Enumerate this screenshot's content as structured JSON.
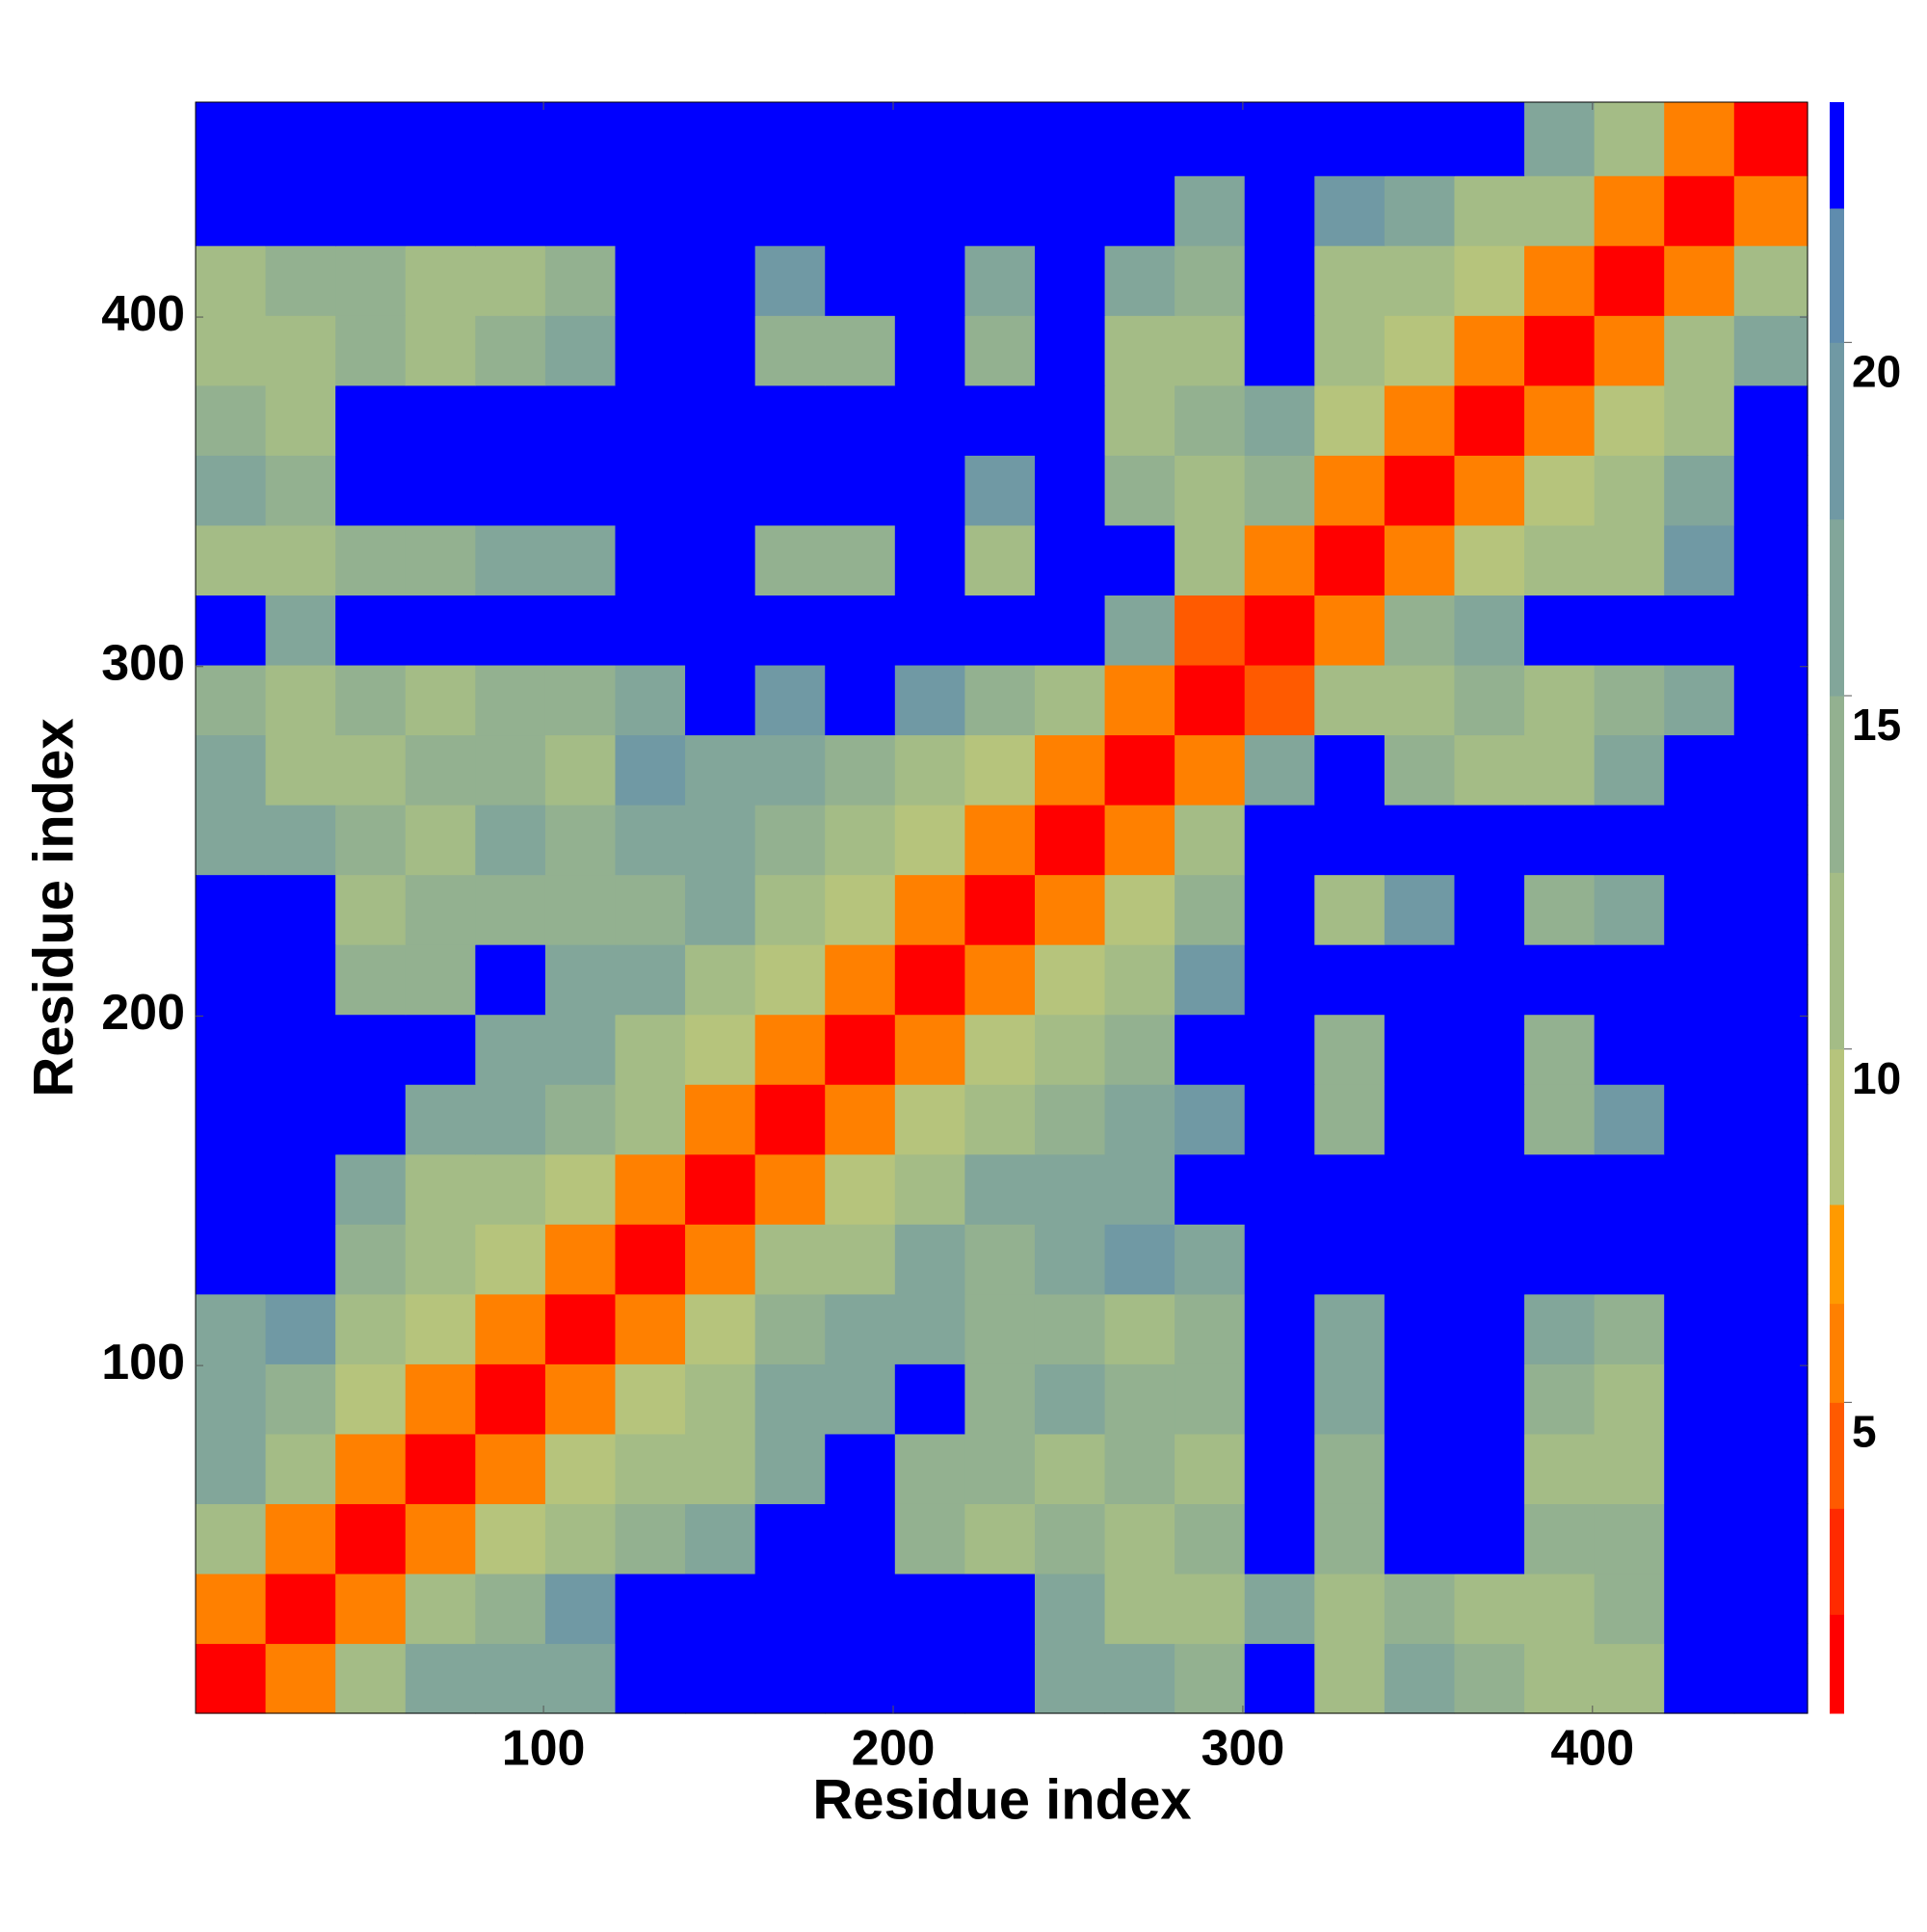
{
  "chart_data": {
    "type": "heatmap",
    "x_label": "Residue index",
    "y_label": "Residue index",
    "xlim": [
      0.5,
      461.5
    ],
    "ylim": [
      0.5,
      461.5
    ],
    "xticks": [
      100,
      200,
      300,
      400
    ],
    "yticks": [
      100,
      200,
      300,
      400
    ],
    "bin_edges": [
      0.5,
      20.5,
      40.5,
      60.5,
      80.5,
      100.5,
      120.5,
      140.5,
      160.5,
      180.5,
      200.5,
      220.5,
      240.5,
      260.5,
      280.5,
      300.5,
      320.5,
      340.5,
      360.5,
      380.5,
      400.5,
      420.5,
      440.5,
      461.5
    ],
    "values": [
      [
        1,
        6,
        11,
        16,
        16,
        17,
        23,
        23,
        23,
        23,
        23,
        23,
        17,
        15,
        14,
        23,
        12,
        16,
        13,
        11,
        10,
        23,
        23
      ],
      [
        6,
        1,
        5,
        10,
        14,
        18,
        23,
        23,
        23,
        23,
        23,
        23,
        16,
        12,
        12,
        15,
        11,
        14,
        12,
        11,
        13,
        23,
        23
      ],
      [
        11,
        5,
        1,
        5,
        9,
        10,
        13,
        17,
        23,
        23,
        13,
        12,
        14,
        11,
        13,
        23,
        14,
        23,
        23,
        13,
        13,
        23,
        23
      ],
      [
        16,
        10,
        5,
        1,
        5,
        8,
        10,
        12,
        16,
        23,
        13,
        13,
        12,
        13,
        12,
        23,
        13,
        23,
        23,
        10,
        12,
        23,
        23
      ],
      [
        16,
        14,
        9,
        5,
        1,
        5,
        9,
        11,
        15,
        17,
        23,
        14,
        15,
        14,
        13,
        23,
        17,
        23,
        23,
        13,
        11,
        23,
        23
      ],
      [
        17,
        18,
        10,
        8,
        5,
        1,
        5,
        9,
        13,
        15,
        15,
        13,
        13,
        12,
        14,
        23,
        16,
        23,
        23,
        15,
        14,
        23,
        23
      ],
      [
        23,
        23,
        13,
        10,
        9,
        5,
        1,
        5,
        10,
        12,
        17,
        14,
        15,
        18,
        17,
        23,
        23,
        23,
        23,
        23,
        23,
        23,
        23
      ],
      [
        23,
        23,
        17,
        12,
        11,
        9,
        5,
        1,
        5,
        9,
        11,
        17,
        17,
        16,
        23,
        23,
        23,
        23,
        23,
        23,
        23,
        23,
        23
      ],
      [
        23,
        23,
        23,
        16,
        15,
        13,
        10,
        5,
        1,
        5,
        9,
        10,
        13,
        17,
        19,
        23,
        13,
        23,
        23,
        14,
        19,
        23,
        23
      ],
      [
        23,
        23,
        23,
        23,
        17,
        15,
        12,
        9,
        5,
        1,
        5,
        9,
        10,
        13,
        23,
        23,
        13,
        23,
        23,
        14,
        23,
        23,
        23
      ],
      [
        23,
        23,
        13,
        13,
        23,
        15,
        17,
        11,
        9,
        5,
        1,
        5,
        9,
        10,
        19,
        23,
        23,
        23,
        23,
        23,
        23,
        23,
        23
      ],
      [
        23,
        23,
        12,
        13,
        14,
        13,
        14,
        17,
        10,
        9,
        5,
        1,
        5,
        9,
        14,
        23,
        12,
        18,
        23,
        13,
        17,
        23,
        23
      ],
      [
        17,
        16,
        14,
        12,
        15,
        13,
        15,
        17,
        13,
        10,
        9,
        5,
        1,
        5,
        11,
        23,
        23,
        23,
        23,
        23,
        23,
        23,
        23
      ],
      [
        15,
        12,
        11,
        13,
        14,
        12,
        18,
        16,
        17,
        13,
        10,
        9,
        5,
        1,
        5,
        17,
        23,
        13,
        11,
        12,
        15,
        23,
        23
      ],
      [
        14,
        12,
        13,
        12,
        13,
        14,
        17,
        23,
        19,
        23,
        19,
        14,
        11,
        5,
        1,
        4,
        10,
        11,
        13,
        10,
        13,
        17,
        23
      ],
      [
        23,
        15,
        23,
        23,
        23,
        23,
        23,
        23,
        23,
        23,
        23,
        23,
        23,
        17,
        4,
        1,
        5,
        14,
        17,
        23,
        23,
        23,
        23
      ],
      [
        12,
        11,
        14,
        13,
        17,
        16,
        23,
        23,
        13,
        13,
        23,
        12,
        23,
        23,
        10,
        5,
        1,
        5,
        9,
        10,
        12,
        18,
        23
      ],
      [
        16,
        14,
        23,
        23,
        23,
        23,
        23,
        23,
        23,
        23,
        23,
        18,
        23,
        13,
        11,
        14,
        5,
        1,
        5,
        9,
        11,
        16,
        23
      ],
      [
        13,
        12,
        23,
        23,
        23,
        23,
        23,
        23,
        23,
        23,
        23,
        23,
        23,
        11,
        13,
        17,
        9,
        5,
        1,
        5,
        9,
        12,
        23
      ],
      [
        11,
        11,
        13,
        10,
        13,
        15,
        23,
        23,
        14,
        14,
        23,
        13,
        23,
        12,
        10,
        23,
        10,
        9,
        5,
        1,
        5,
        10,
        17
      ],
      [
        10,
        13,
        13,
        12,
        11,
        14,
        23,
        23,
        19,
        23,
        23,
        17,
        23,
        15,
        13,
        23,
        12,
        11,
        9,
        5,
        1,
        5,
        11
      ],
      [
        23,
        23,
        23,
        23,
        23,
        23,
        23,
        23,
        23,
        23,
        23,
        23,
        23,
        23,
        17,
        23,
        18,
        16,
        12,
        10,
        5,
        1,
        5
      ],
      [
        23,
        23,
        23,
        23,
        23,
        23,
        23,
        23,
        23,
        23,
        23,
        23,
        23,
        23,
        23,
        23,
        23,
        23,
        23,
        17,
        11,
        5,
        1
      ]
    ],
    "colorbar": {
      "levels": [
        0.6,
        2,
        3.5,
        5,
        6.4,
        7.8,
        10,
        12.5,
        15,
        17.5,
        20,
        21.9,
        23.4
      ],
      "colors": [
        "#ff0000",
        "#ff2a00",
        "#ff5a00",
        "#ff8000",
        "#ff9a00",
        "#b6c47c",
        "#a4bc86",
        "#93b190",
        "#82a69a",
        "#7099a4",
        "#5f8cae",
        "#0000ff"
      ],
      "ticks": [
        5,
        10,
        15,
        20
      ]
    }
  }
}
